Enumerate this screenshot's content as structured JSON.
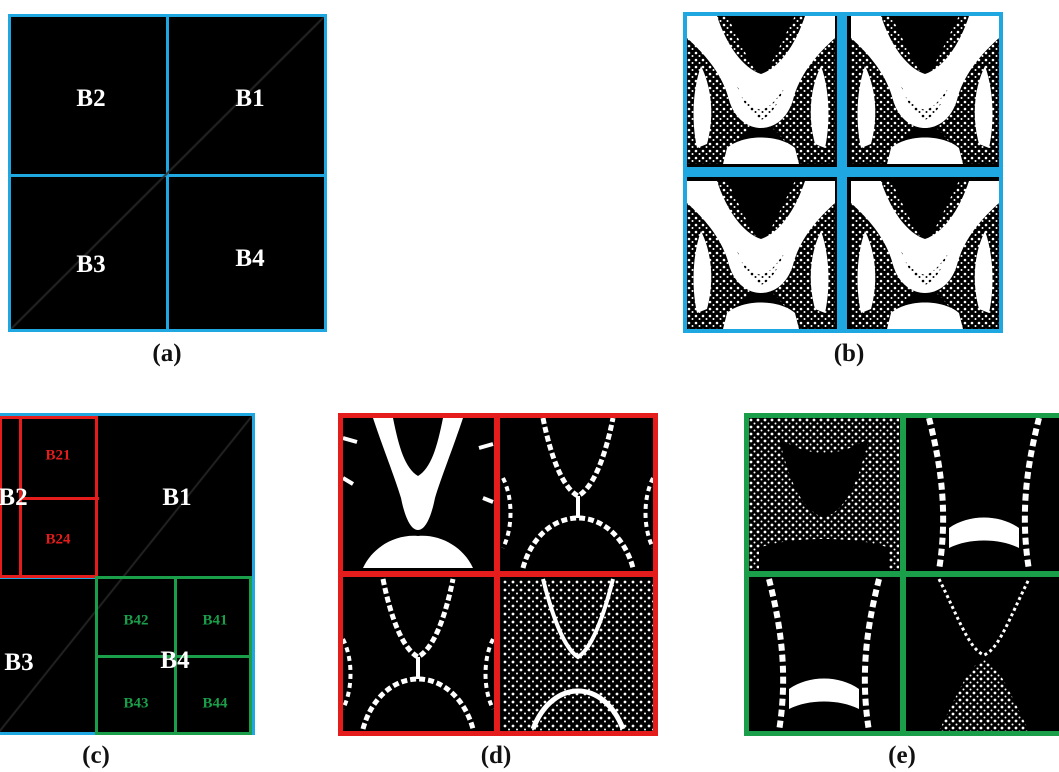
{
  "colors": {
    "level1_border": "#1fa7e1",
    "level2_red": "#e41c1c",
    "level2_green": "#1a9e4a",
    "background": "#000000",
    "foreground": "#ffffff"
  },
  "panels": {
    "a": {
      "caption": "(a)",
      "blocks": {
        "B1": "B1",
        "B2": "B2",
        "B3": "B3",
        "B4": "B4"
      }
    },
    "b": {
      "caption": "(b)"
    },
    "c": {
      "caption": "(c)",
      "blocks": {
        "B1": "B1",
        "B2": "B2",
        "B3": "B3",
        "B4": "B4"
      },
      "sub_red": {
        "B21": "B21",
        "B24": "B24"
      },
      "sub_green": {
        "B41": "B41",
        "B42": "B42",
        "B43": "B43",
        "B44": "B44"
      }
    },
    "d": {
      "caption": "(d)"
    },
    "e": {
      "caption": "(e)"
    }
  }
}
